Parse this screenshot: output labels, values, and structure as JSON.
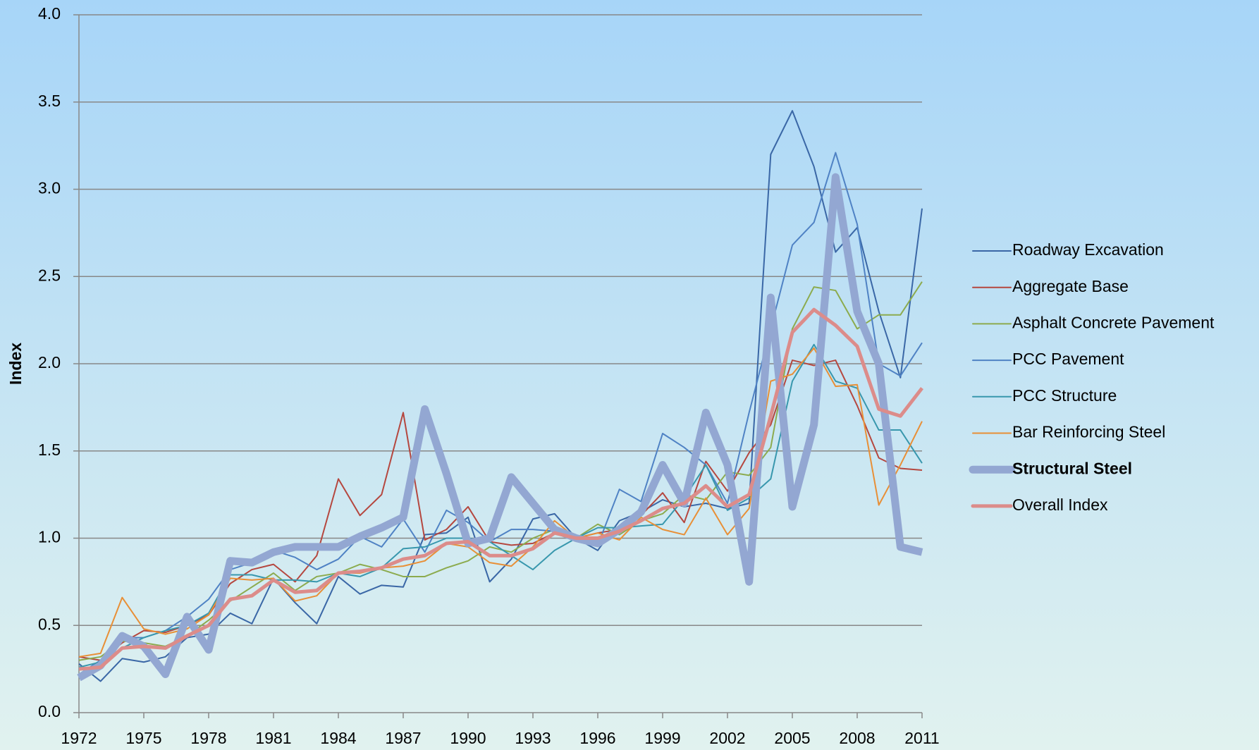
{
  "chart_data": {
    "type": "line",
    "y_label": "Index",
    "x": [
      1972,
      1973,
      1974,
      1975,
      1976,
      1977,
      1978,
      1979,
      1980,
      1981,
      1982,
      1983,
      1984,
      1985,
      1986,
      1987,
      1988,
      1989,
      1990,
      1991,
      1992,
      1993,
      1994,
      1995,
      1996,
      1997,
      1998,
      1999,
      2000,
      2001,
      2002,
      2003,
      2004,
      2005,
      2006,
      2007,
      2008,
      2009,
      2010,
      2011
    ],
    "xlim": [
      1972,
      2011
    ],
    "xticks": [
      1972,
      1975,
      1978,
      1981,
      1984,
      1987,
      1990,
      1993,
      1996,
      1999,
      2002,
      2005,
      2008,
      2011
    ],
    "ylim": [
      0,
      4
    ],
    "yticks": [
      {
        "value": 0,
        "label": "0.0"
      },
      {
        "value": 0.5,
        "label": "0.5"
      },
      {
        "value": 1,
        "label": "1.0"
      },
      {
        "value": 1.5,
        "label": "1.5"
      },
      {
        "value": 2,
        "label": "2.0"
      },
      {
        "value": 2.5,
        "label": "2.5"
      },
      {
        "value": 3,
        "label": "3.0"
      },
      {
        "value": 3.5,
        "label": "3.5"
      },
      {
        "value": 4,
        "label": "4.0"
      }
    ],
    "grid": true,
    "legend": "right",
    "series": [
      {
        "name": "Roadway Excavation",
        "color": "#3a67a6",
        "width": 2,
        "values": [
          0.28,
          0.18,
          0.31,
          0.29,
          0.32,
          0.43,
          0.45,
          0.57,
          0.51,
          0.77,
          0.63,
          0.51,
          0.78,
          0.68,
          0.73,
          0.72,
          1.02,
          1.03,
          1.12,
          0.75,
          0.88,
          1.11,
          1.14,
          1.0,
          0.93,
          1.1,
          1.15,
          1.22,
          1.18,
          1.2,
          1.17,
          1.2,
          3.2,
          3.45,
          3.13,
          2.64,
          2.78,
          2.3,
          1.92,
          2.89
        ]
      },
      {
        "name": "Aggregate Base",
        "color": "#b5473f",
        "width": 2,
        "values": [
          0.32,
          0.3,
          0.4,
          0.47,
          0.46,
          0.5,
          0.56,
          0.74,
          0.82,
          0.85,
          0.75,
          0.9,
          1.34,
          1.13,
          1.25,
          1.72,
          0.99,
          1.05,
          1.18,
          0.98,
          0.96,
          0.97,
          1.03,
          1.0,
          1.03,
          1.05,
          1.13,
          1.26,
          1.09,
          1.44,
          1.27,
          1.49,
          1.65,
          2.02,
          1.99,
          2.02,
          1.76,
          1.46,
          1.4,
          1.39
        ]
      },
      {
        "name": "Asphalt Concrete Pavement",
        "color": "#8cab4e",
        "width": 2,
        "values": [
          0.3,
          0.32,
          0.41,
          0.4,
          0.38,
          0.44,
          0.53,
          0.64,
          0.72,
          0.8,
          0.7,
          0.78,
          0.8,
          0.85,
          0.82,
          0.78,
          0.78,
          0.83,
          0.87,
          0.95,
          0.92,
          1.0,
          1.05,
          1.0,
          1.08,
          1.02,
          1.1,
          1.14,
          1.25,
          1.22,
          1.38,
          1.36,
          1.52,
          2.2,
          2.44,
          2.42,
          2.2,
          2.28,
          2.28,
          2.47
        ]
      },
      {
        "name": "PCC Pavement",
        "color": "#4f82c4",
        "width": 2,
        "values": [
          0.22,
          0.3,
          0.43,
          0.43,
          0.47,
          0.55,
          0.65,
          0.82,
          0.86,
          0.93,
          0.89,
          0.82,
          0.88,
          1.01,
          0.95,
          1.11,
          0.92,
          1.16,
          1.09,
          0.98,
          1.05,
          1.05,
          1.04,
          1.0,
          0.96,
          1.28,
          1.21,
          1.6,
          1.52,
          1.42,
          1.2,
          1.72,
          2.2,
          2.68,
          2.81,
          3.21,
          2.8,
          2.0,
          1.93,
          2.12
        ]
      },
      {
        "name": "PCC Structure",
        "color": "#3897ad",
        "width": 2,
        "values": [
          0.26,
          0.29,
          0.37,
          0.43,
          0.47,
          0.5,
          0.57,
          0.79,
          0.79,
          0.76,
          0.76,
          0.75,
          0.8,
          0.78,
          0.83,
          0.94,
          0.95,
          1.0,
          1.0,
          0.98,
          0.9,
          0.82,
          0.93,
          1.0,
          1.06,
          1.06,
          1.07,
          1.08,
          1.23,
          1.42,
          1.16,
          1.23,
          1.34,
          1.9,
          2.11,
          1.9,
          1.86,
          1.62,
          1.62,
          1.43
        ]
      },
      {
        "name": "Bar Reinforcing Steel",
        "color": "#e88f36",
        "width": 2,
        "values": [
          0.32,
          0.34,
          0.66,
          0.48,
          0.45,
          0.48,
          0.56,
          0.77,
          0.76,
          0.77,
          0.64,
          0.67,
          0.8,
          0.8,
          0.83,
          0.84,
          0.87,
          0.97,
          0.95,
          0.86,
          0.84,
          0.95,
          1.1,
          1.0,
          1.03,
          0.99,
          1.12,
          1.05,
          1.02,
          1.23,
          1.02,
          1.17,
          1.9,
          1.94,
          2.09,
          1.87,
          1.88,
          1.19,
          1.42,
          1.67
        ]
      },
      {
        "name": "Structural Steel",
        "color": "#93a7d2",
        "width": 11,
        "values": [
          0.2,
          0.27,
          0.44,
          0.38,
          0.22,
          0.55,
          0.36,
          0.87,
          0.86,
          0.92,
          0.95,
          0.95,
          0.95,
          1.01,
          1.06,
          1.12,
          1.74,
          1.37,
          0.97,
          1.0,
          1.35,
          1.2,
          1.05,
          1.0,
          0.97,
          1.05,
          1.15,
          1.42,
          1.2,
          1.72,
          1.42,
          0.75,
          2.38,
          1.18,
          1.65,
          3.07,
          2.3,
          2.0,
          0.95,
          0.92
        ]
      },
      {
        "name": "Overall Index",
        "color": "#dc8c8a",
        "width": 5,
        "values": [
          0.25,
          0.26,
          0.37,
          0.38,
          0.37,
          0.44,
          0.5,
          0.65,
          0.67,
          0.76,
          0.69,
          0.7,
          0.8,
          0.81,
          0.83,
          0.88,
          0.9,
          0.97,
          0.98,
          0.9,
          0.9,
          0.94,
          1.03,
          1.0,
          1.0,
          1.04,
          1.1,
          1.17,
          1.2,
          1.3,
          1.18,
          1.25,
          1.7,
          2.18,
          2.31,
          2.22,
          2.1,
          1.74,
          1.7,
          1.86
        ]
      }
    ]
  }
}
